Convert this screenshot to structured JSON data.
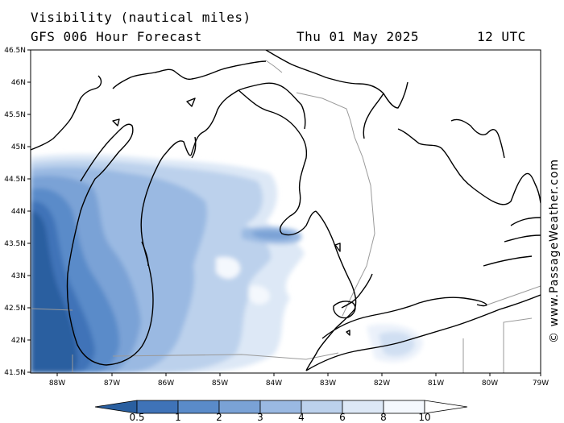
{
  "header": {
    "title": "Visibility (nautical miles)",
    "model": "GFS 006 Hour Forecast",
    "date": "Thu 01 May 2025",
    "time": "12 UTC"
  },
  "watermark": "© www.PassageWeather.com",
  "map": {
    "lat_labels": [
      "46.5N",
      "46N",
      "45.5N",
      "45N",
      "44.5N",
      "44N",
      "43.5N",
      "43N",
      "42.5N",
      "42N",
      "41.5N"
    ],
    "lon_labels": [
      "88W",
      "87W",
      "86W",
      "85W",
      "84W",
      "83W",
      "82W",
      "81W",
      "80W",
      "79W"
    ]
  },
  "colorbar": {
    "labels": [
      "0.5",
      "1",
      "2",
      "3",
      "4",
      "6",
      "8",
      "10"
    ],
    "colors": [
      "#2a5fa0",
      "#3f73b8",
      "#5a8bc9",
      "#7aa2d6",
      "#9ab9e2",
      "#bcd1ec",
      "#dde8f6",
      "#f4f8fd"
    ]
  }
}
